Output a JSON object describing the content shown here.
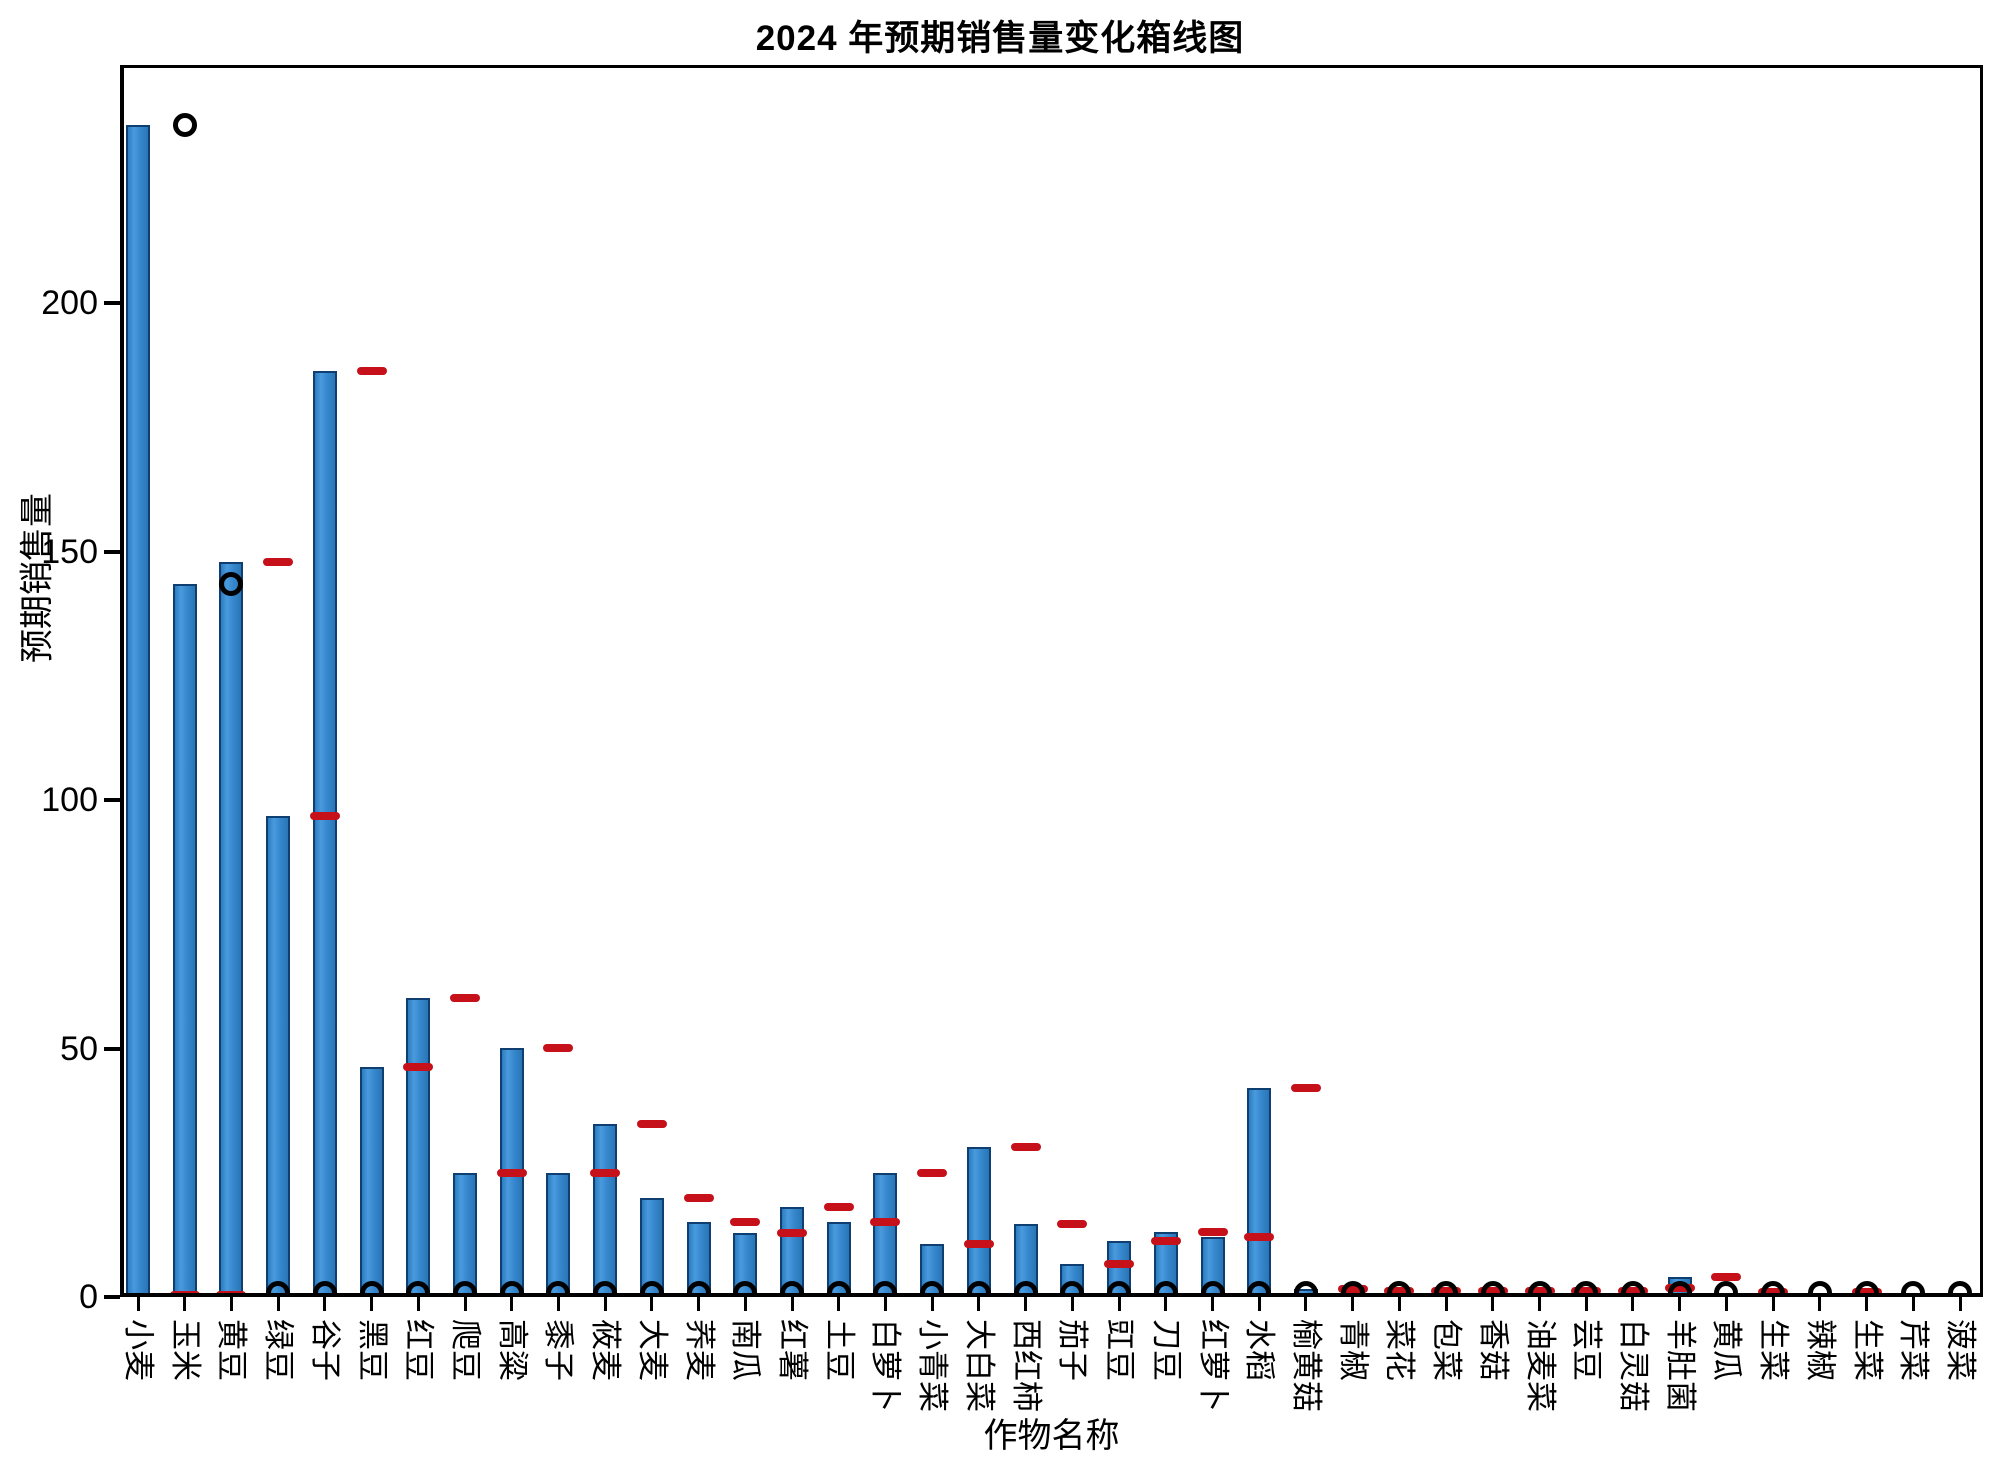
{
  "title": "2024 年预期销售量变化箱线图",
  "chart_data": {
    "type": "bar",
    "subtype": "boxplot-style bar chart with median dashes and outlier circles",
    "title": "2024 年预期销售量变化箱线图",
    "xlabel": "作物名称",
    "ylabel": "预期销售量",
    "ylim": [
      0,
      248
    ],
    "yticks": [
      0,
      50,
      100,
      150,
      200
    ],
    "grid": false,
    "legend": "none",
    "categories": [
      "小麦",
      "玉米",
      "黄豆",
      "绿豆",
      "谷子",
      "黑豆",
      "红豆",
      "爬豆",
      "高粱",
      "黍子",
      "莜麦",
      "大麦",
      "荞麦",
      "南瓜",
      "红薯",
      "土豆",
      "白萝卜",
      "小青菜",
      "大白菜",
      "西红柿",
      "茄子",
      "豇豆",
      "刀豆",
      "红萝卜",
      "水稻",
      "榆黄菇",
      "青椒",
      "菜花",
      "包菜",
      "香菇",
      "油麦菜",
      "芸豆",
      "白灵菇",
      "羊肚菌",
      "黄瓜",
      "生菜",
      "辣椒",
      "生菜",
      "芹菜",
      "菠菜"
    ],
    "bar_values": [
      236,
      143.5,
      148,
      96.8,
      186.5,
      46.3,
      60.2,
      25,
      50.2,
      25,
      34.9,
      20,
      15,
      12.9,
      18.2,
      15,
      25,
      10.7,
      30.2,
      14.7,
      6.6,
      11.3,
      13.1,
      12.1,
      42.1,
      1.6,
      1.2,
      0.7,
      0.7,
      0.7,
      1.0,
      0.8,
      0.7,
      4.0,
      0.8,
      0.7,
      0.4,
      0.4,
      0.4,
      0.4
    ],
    "median_dash_values": [
      null,
      0.5,
      0.5,
      148,
      96.8,
      186.5,
      46.3,
      60.2,
      25,
      50.2,
      25,
      34.9,
      20,
      15,
      12.9,
      18.2,
      15,
      25,
      10.7,
      30.2,
      14.7,
      6.6,
      11.3,
      13.1,
      12.1,
      42.1,
      1.6,
      1.2,
      1.2,
      1.2,
      1.3,
      1.2,
      1.2,
      1.9,
      4.0,
      1.0,
      null,
      1.0,
      null,
      null
    ],
    "outlier_circle_values": [
      [],
      [
        236
      ],
      [
        143.5
      ],
      [
        0.9
      ],
      [
        0.9
      ],
      [
        0.9
      ],
      [
        0.9
      ],
      [
        0.9
      ],
      [
        0.9
      ],
      [
        0.9
      ],
      [
        0.9
      ],
      [
        0.9
      ],
      [
        0.9
      ],
      [
        0.9
      ],
      [
        0.9
      ],
      [
        0.9
      ],
      [
        0.9
      ],
      [
        0.9
      ],
      [
        0.9
      ],
      [
        0.9
      ],
      [
        0.9
      ],
      [
        0.9
      ],
      [
        0.9
      ],
      [
        0.9
      ],
      [
        0.9
      ],
      [
        0.9
      ],
      [
        0.9
      ],
      [
        0.9
      ],
      [
        0.9
      ],
      [
        0.9
      ],
      [
        0.9
      ],
      [
        0.9
      ],
      [
        0.9
      ],
      [
        0.9
      ],
      [
        0.9
      ],
      [
        0.9
      ],
      [
        0.9
      ],
      [
        0.9
      ],
      [
        0.9
      ],
      [
        0.9
      ]
    ],
    "colors": {
      "bar_fill": "#3586cc",
      "bar_edge": "#0e3f70",
      "median_dash": "#c6101a",
      "outlier_ring": "#000000",
      "axis": "#000000",
      "background": "#ffffff"
    }
  }
}
